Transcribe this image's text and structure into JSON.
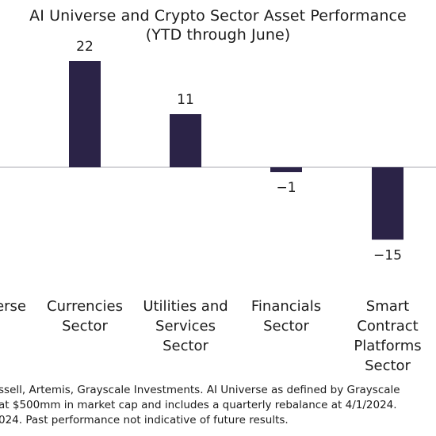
{
  "chart_data": {
    "type": "bar",
    "title": "AI Universe and Crypto Sector Asset Performance",
    "subtitle": "(YTD through June)",
    "categories": [
      "Universe",
      "Currencies Sector",
      "Utilities and Services Sector",
      "Financials Sector",
      "Smart Contract Platforms Sector"
    ],
    "category_lines": [
      [
        "erse"
      ],
      [
        "Currencies",
        "Sector"
      ],
      [
        "Utilities and",
        "Services",
        "Sector"
      ],
      [
        "Financials",
        "Sector"
      ],
      [
        "Smart",
        "Contract",
        "Platforms",
        "Sector"
      ]
    ],
    "series": [
      {
        "values": [
          null,
          22,
          11,
          -1,
          -15
        ],
        "labels": [
          "",
          "22",
          "11",
          "−1",
          "−15"
        ]
      }
    ],
    "ylim": [
      -30,
      30
    ],
    "grid": false,
    "legend": "none",
    "colors": {
      "bar": "#2b2347",
      "text": "#1b1b1b",
      "baseline": "#a9a9b0"
    }
  },
  "footnote": {
    "lines": [
      "ssell, Artemis, Grayscale Investments. AI Universe as defined by Grayscale",
      "at $500mm in market cap and includes a quarterly rebalance at 4/1/2024.",
      "024. Past performance not indicative of future results."
    ]
  }
}
